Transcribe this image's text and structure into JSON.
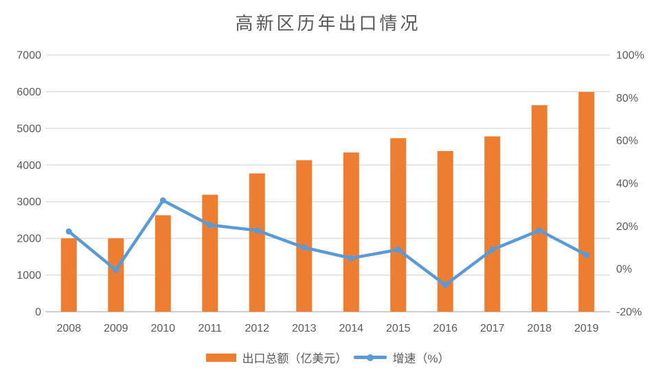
{
  "chart_data": {
    "type": "bar+line",
    "title": "高新区历年出口情况",
    "categories": [
      "2008",
      "2009",
      "2010",
      "2011",
      "2012",
      "2013",
      "2014",
      "2015",
      "2016",
      "2017",
      "2018",
      "2019"
    ],
    "series": [
      {
        "name": "出口总额（亿美元）",
        "type": "bar",
        "axis": "left",
        "color": "#ED7D31",
        "values": [
          2000,
          2000,
          2630,
          3190,
          3770,
          4130,
          4340,
          4730,
          4380,
          4780,
          5630,
          5990
        ]
      },
      {
        "name": "增速（%）",
        "type": "line",
        "axis": "right",
        "color": "#5B9BD5",
        "values": [
          17.5,
          -0.5,
          32,
          20.5,
          18,
          10,
          5,
          9,
          -7.5,
          9,
          18,
          6.5
        ]
      }
    ],
    "axes": {
      "left": {
        "min": 0,
        "max": 7000,
        "ticks": [
          {
            "v": 0,
            "label": "0"
          },
          {
            "v": 1000,
            "label": "1000"
          },
          {
            "v": 2000,
            "label": "2000"
          },
          {
            "v": 3000,
            "label": "3000"
          },
          {
            "v": 4000,
            "label": "4000"
          },
          {
            "v": 5000,
            "label": "5000"
          },
          {
            "v": 6000,
            "label": "6000"
          },
          {
            "v": 7000,
            "label": "7000"
          }
        ]
      },
      "right": {
        "min": -20,
        "max": 100,
        "ticks": [
          {
            "v": -20,
            "label": "-20%"
          },
          {
            "v": 0,
            "label": "0%"
          },
          {
            "v": 20,
            "label": "20%"
          },
          {
            "v": 40,
            "label": "40%"
          },
          {
            "v": 60,
            "label": "60%"
          },
          {
            "v": 80,
            "label": "80%"
          },
          {
            "v": 100,
            "label": "100%"
          }
        ]
      }
    },
    "grid": "horizontal",
    "legend_position": "bottom",
    "colors": {
      "gridline": "#D9D9D9",
      "axis_line": "#BFBFBF",
      "text": "#595959",
      "background": "#FFFFFF"
    }
  }
}
